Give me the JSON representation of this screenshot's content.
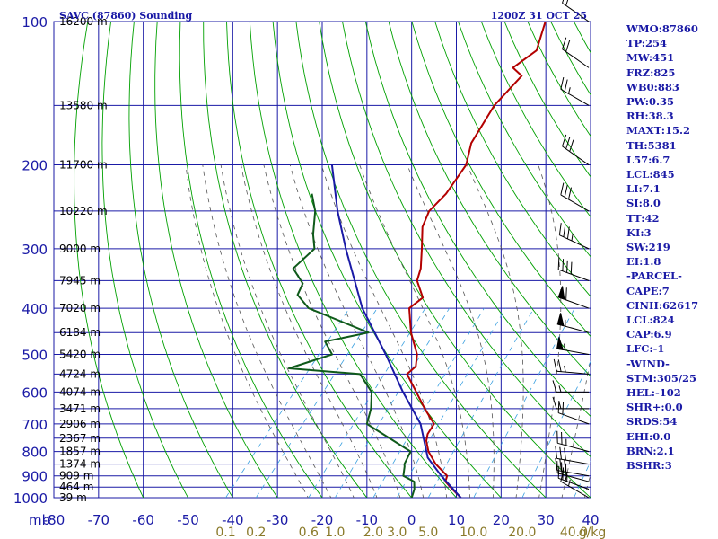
{
  "chart_data": {
    "type": "line",
    "title": "SAVC (87860) Sounding",
    "valid_time": "1200Z 31 OCT 25",
    "x_unit_label": "mb",
    "temperature_ticks": [
      "-80",
      "-70",
      "-60",
      "-50",
      "-40",
      "-30",
      "-20",
      "-10",
      "0",
      "10",
      "20",
      "30",
      "40"
    ],
    "temperature_range_c": [
      -80,
      40
    ],
    "pressure_ticks": [
      "100",
      "200",
      "300",
      "400",
      "500",
      "600",
      "700",
      "800",
      "900",
      "1000"
    ],
    "pressure_range_mb": [
      100,
      1000
    ],
    "height_labels": [
      {
        "p": 100,
        "label": "16200 m"
      },
      {
        "p": 150,
        "label": "13580 m"
      },
      {
        "p": 200,
        "label": "11700 m"
      },
      {
        "p": 250,
        "label": "10220 m"
      },
      {
        "p": 300,
        "label": "9000 m"
      },
      {
        "p": 350,
        "label": "7945 m"
      },
      {
        "p": 400,
        "label": "7020 m"
      },
      {
        "p": 450,
        "label": "6184 m"
      },
      {
        "p": 500,
        "label": "5420 m"
      },
      {
        "p": 550,
        "label": "4724 m"
      },
      {
        "p": 600,
        "label": "4074 m"
      },
      {
        "p": 650,
        "label": "3471 m"
      },
      {
        "p": 700,
        "label": "2906 m"
      },
      {
        "p": 750,
        "label": "2367 m"
      },
      {
        "p": 800,
        "label": "1857 m"
      },
      {
        "p": 850,
        "label": "1374 m"
      },
      {
        "p": 900,
        "label": "909 m"
      },
      {
        "p": 950,
        "label": "464 m"
      },
      {
        "p": 1000,
        "label": "39 m"
      }
    ],
    "mixing_ratio_labels": [
      "0.1",
      "0.2",
      "0.6",
      "1.0",
      "2.0",
      "3.0",
      "5.0",
      "10.0",
      "20.0",
      "40.0",
      "g/kg"
    ],
    "grid": true,
    "series": [
      {
        "key": "temperature",
        "color": "#b30000",
        "points": [
          {
            "p": 1000,
            "t": 11.0
          },
          {
            "p": 960,
            "t": 7.5
          },
          {
            "p": 925,
            "t": 4.5
          },
          {
            "p": 900,
            "t": 3.8
          },
          {
            "p": 860,
            "t": 0.0
          },
          {
            "p": 850,
            "t": -1.0
          },
          {
            "p": 800,
            "t": -5.0
          },
          {
            "p": 760,
            "t": -7.5
          },
          {
            "p": 735,
            "t": -8.5
          },
          {
            "p": 700,
            "t": -9.0
          },
          {
            "p": 650,
            "t": -14.0
          },
          {
            "p": 600,
            "t": -19.0
          },
          {
            "p": 550,
            "t": -24.5
          },
          {
            "p": 530,
            "t": -24.0
          },
          {
            "p": 500,
            "t": -26.0
          },
          {
            "p": 450,
            "t": -31.5
          },
          {
            "p": 400,
            "t": -36.5
          },
          {
            "p": 380,
            "t": -35.5
          },
          {
            "p": 350,
            "t": -40.0
          },
          {
            "p": 330,
            "t": -41.5
          },
          {
            "p": 300,
            "t": -45.0
          },
          {
            "p": 270,
            "t": -49.0
          },
          {
            "p": 250,
            "t": -50.5
          },
          {
            "p": 230,
            "t": -50.0
          },
          {
            "p": 200,
            "t": -51.0
          },
          {
            "p": 180,
            "t": -54.0
          },
          {
            "p": 150,
            "t": -56.0
          },
          {
            "p": 130,
            "t": -55.5
          },
          {
            "p": 125,
            "t": -59.0
          },
          {
            "p": 115,
            "t": -57.0
          },
          {
            "p": 100,
            "t": -60.5
          }
        ]
      },
      {
        "key": "dewpoint",
        "color": "#0f5a1a",
        "points": [
          {
            "p": 1000,
            "t": 0.0
          },
          {
            "p": 960,
            "t": -1.0
          },
          {
            "p": 925,
            "t": -2.5
          },
          {
            "p": 900,
            "t": -6.0
          },
          {
            "p": 860,
            "t": -7.5
          },
          {
            "p": 850,
            "t": -8.0
          },
          {
            "p": 800,
            "t": -9.0
          },
          {
            "p": 700,
            "t": -24.0
          },
          {
            "p": 650,
            "t": -26.0
          },
          {
            "p": 600,
            "t": -29.0
          },
          {
            "p": 550,
            "t": -35.0
          },
          {
            "p": 535,
            "t": -52.0
          },
          {
            "p": 500,
            "t": -45.0
          },
          {
            "p": 470,
            "t": -49.0
          },
          {
            "p": 450,
            "t": -41.0
          },
          {
            "p": 400,
            "t": -59.0
          },
          {
            "p": 375,
            "t": -64.0
          },
          {
            "p": 355,
            "t": -65.0
          },
          {
            "p": 330,
            "t": -70.0
          },
          {
            "p": 300,
            "t": -69.0
          },
          {
            "p": 280,
            "t": -72.0
          },
          {
            "p": 250,
            "t": -76.0
          },
          {
            "p": 230,
            "t": -80.0
          }
        ]
      },
      {
        "key": "parcel",
        "color": "#1a1aa6",
        "points": [
          {
            "p": 1000,
            "t": 11.0
          },
          {
            "p": 900,
            "t": 2.5
          },
          {
            "p": 824,
            "t": -4.0
          },
          {
            "p": 700,
            "t": -12.0
          },
          {
            "p": 600,
            "t": -22.0
          },
          {
            "p": 500,
            "t": -33.0
          },
          {
            "p": 400,
            "t": -47.0
          },
          {
            "p": 300,
            "t": -62.0
          },
          {
            "p": 250,
            "t": -71.0
          },
          {
            "p": 200,
            "t": -81.0
          }
        ]
      }
    ],
    "wind_barbs": [
      {
        "p": 1000,
        "dir": 300,
        "kt": 25
      },
      {
        "p": 960,
        "dir": 290,
        "kt": 25
      },
      {
        "p": 925,
        "dir": 285,
        "kt": 30
      },
      {
        "p": 900,
        "dir": 280,
        "kt": 30
      },
      {
        "p": 850,
        "dir": 280,
        "kt": 30
      },
      {
        "p": 800,
        "dir": 285,
        "kt": 25
      },
      {
        "p": 700,
        "dir": 290,
        "kt": 20
      },
      {
        "p": 650,
        "dir": 270,
        "kt": 15
      },
      {
        "p": 600,
        "dir": 270,
        "kt": 15
      },
      {
        "p": 550,
        "dir": 275,
        "kt": 25
      },
      {
        "p": 500,
        "dir": 280,
        "kt": 55
      },
      {
        "p": 450,
        "dir": 285,
        "kt": 55
      },
      {
        "p": 400,
        "dir": 290,
        "kt": 60
      },
      {
        "p": 350,
        "dir": 290,
        "kt": 40
      },
      {
        "p": 300,
        "dir": 295,
        "kt": 35
      },
      {
        "p": 250,
        "dir": 300,
        "kt": 30
      },
      {
        "p": 200,
        "dir": 305,
        "kt": 30
      },
      {
        "p": 150,
        "dir": 300,
        "kt": 25
      },
      {
        "p": 125,
        "dir": 305,
        "kt": 20
      },
      {
        "p": 100,
        "dir": 305,
        "kt": 20
      }
    ],
    "colors": {
      "grid": "#1a1aa6",
      "dry_adiabat": "#00a000",
      "moist_adiabat": "#555555",
      "mixing_ratio": "#3aa0e0",
      "barb": "#000000",
      "mixing_label": "#8a7a2a"
    }
  },
  "indices": [
    "WMO:87860",
    "TP:254",
    "MW:451",
    "FRZ:825",
    "WB0:883",
    "PW:0.35",
    "RH:38.3",
    "MAXT:15.2",
    "TH:5381",
    "L57:6.7",
    "LCL:845",
    "LI:7.1",
    "SI:8.0",
    "TT:42",
    "KI:3",
    "SW:219",
    "EI:1.8",
    "-PARCEL-",
    "CAPE:7",
    "CINH:62617",
    "LCL:824",
    "CAP:6.9",
    "LFC:-1",
    "-WIND-",
    "STM:305/25",
    "HEL:-102",
    "SHR+:0.0",
    "SRDS:54",
    "EHI:0.0",
    "BRN:2.1",
    "BSHR:3"
  ]
}
